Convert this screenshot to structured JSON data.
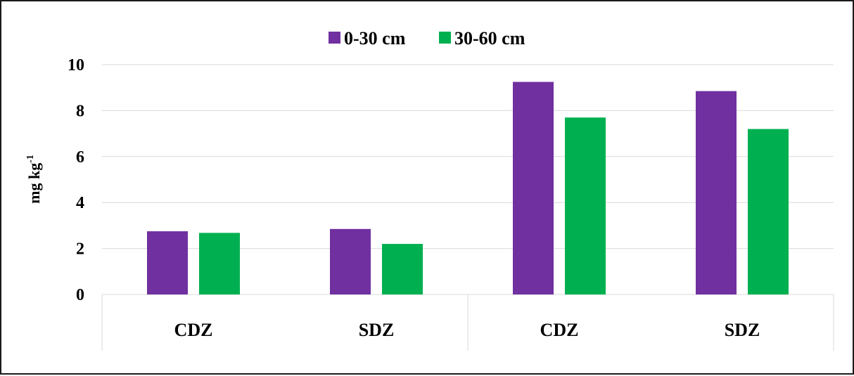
{
  "chart_data": {
    "type": "bar",
    "categories": [
      "CDZ",
      "SDZ",
      "CDZ",
      "SDZ"
    ],
    "series": [
      {
        "name": "0-30 cm",
        "color": "#7030A0",
        "values": [
          2.75,
          2.85,
          9.25,
          8.85
        ]
      },
      {
        "name": "30-60 cm",
        "color": "#00B050",
        "values": [
          2.68,
          2.2,
          7.7,
          7.2
        ]
      }
    ],
    "ylabel": "mg kg",
    "ylabel_superscript": "-1",
    "ylim": [
      0,
      10
    ],
    "yticks": [
      "0",
      "2",
      "4",
      "6",
      "8",
      "10"
    ],
    "ytick_values": [
      0,
      2,
      4,
      6,
      8,
      10
    ],
    "grid": true,
    "legend_position": "top-center"
  }
}
